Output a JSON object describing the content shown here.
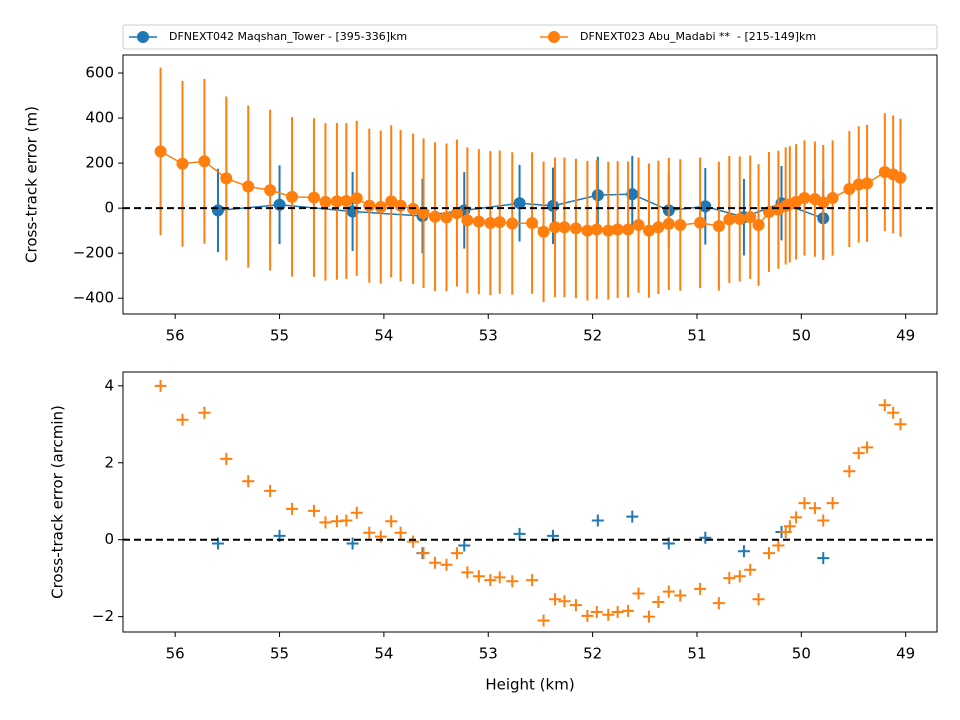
{
  "chart_data": [
    {
      "type": "errorbar",
      "ylabel": "Cross-track error (m)",
      "xlim": [
        56.5,
        48.7
      ],
      "xticks": [
        56,
        55,
        54,
        53,
        52,
        51,
        50,
        49
      ],
      "ylim": [
        -470,
        680
      ],
      "yticks": [
        {
          "value": -400,
          "label": "−400"
        },
        {
          "value": -200,
          "label": "−200"
        },
        0,
        200,
        400,
        600
      ],
      "hline": 0,
      "legend": "top",
      "series": [
        {
          "name": "DFNEXT042 Maqshan_Tower - [395-336]km",
          "color": "#1f77b4",
          "x": [
            55.59,
            55.0,
            54.3,
            53.63,
            53.23,
            52.7,
            52.38,
            51.95,
            51.62,
            51.27,
            50.92,
            50.55,
            50.19,
            49.79
          ],
          "values": [
            -10,
            15,
            -15,
            -35,
            -10,
            22,
            10,
            58,
            62,
            -10,
            8,
            -40,
            22,
            -45
          ],
          "errors": [
            185,
            175,
            175,
            165,
            170,
            170,
            170,
            170,
            170,
            165,
            170,
            170,
            165,
            175
          ]
        },
        {
          "name": "DFNEXT023 Abu_Madabi **  - [215-149]km",
          "color": "#ff7f0e",
          "x": [
            56.14,
            55.93,
            55.72,
            55.51,
            55.3,
            55.09,
            54.88,
            54.67,
            54.56,
            54.45,
            54.36,
            54.26,
            54.14,
            54.03,
            53.93,
            53.84,
            53.72,
            53.62,
            53.51,
            53.4,
            53.3,
            53.2,
            53.09,
            52.98,
            52.89,
            52.77,
            52.58,
            52.47,
            52.36,
            52.27,
            52.16,
            52.05,
            51.96,
            51.85,
            51.76,
            51.66,
            51.56,
            51.46,
            51.37,
            51.27,
            51.16,
            50.97,
            50.79,
            50.69,
            50.59,
            50.49,
            50.41,
            50.31,
            50.22,
            50.15,
            50.11,
            50.05,
            49.97,
            49.87,
            49.79,
            49.7,
            49.54,
            49.45,
            49.37,
            49.2,
            49.12,
            49.05
          ],
          "values": [
            252,
            197,
            208,
            132,
            96,
            80,
            50,
            47,
            28,
            30,
            32,
            44,
            11,
            5,
            30,
            11,
            -3,
            -22,
            -38,
            -41,
            -22,
            -54,
            -60,
            -66,
            -62,
            -68,
            -66,
            -105,
            -85,
            -85,
            -90,
            -100,
            -95,
            -100,
            -95,
            -95,
            -75,
            -100,
            -85,
            -70,
            -75,
            -65,
            -80,
            -50,
            -48,
            -40,
            -75,
            -17,
            -7,
            10,
            17,
            28,
            45,
            40,
            25,
            45,
            85,
            105,
            110,
            160,
            150,
            135
          ],
          "errors": [
            372,
            368,
            366,
            364,
            360,
            357,
            354,
            352,
            350,
            348,
            346,
            344,
            342,
            340,
            338,
            336,
            334,
            332,
            330,
            328,
            326,
            324,
            322,
            320,
            318,
            316,
            314,
            312,
            310,
            310,
            310,
            310,
            308,
            306,
            304,
            302,
            300,
            298,
            296,
            294,
            292,
            290,
            286,
            282,
            278,
            274,
            270,
            266,
            262,
            260,
            258,
            256,
            256,
            256,
            256,
            256,
            258,
            258,
            260,
            262,
            262,
            262
          ]
        }
      ]
    },
    {
      "type": "scatter",
      "ylabel": "Cross-track error (arcmin)",
      "xlabel": "Height (km)",
      "xlim": [
        56.5,
        48.7
      ],
      "xticks": [
        56,
        55,
        54,
        53,
        52,
        51,
        50,
        49
      ],
      "ylim": [
        -2.4,
        4.36
      ],
      "yticks": [
        {
          "value": -2,
          "label": "−2"
        },
        0,
        2,
        4
      ],
      "hline": 0,
      "series": [
        {
          "color": "#1f77b4",
          "x": [
            55.59,
            55.0,
            54.3,
            53.63,
            53.23,
            52.7,
            52.38,
            51.95,
            51.62,
            51.27,
            50.92,
            50.55,
            50.19,
            49.79
          ],
          "values": [
            -0.1,
            0.1,
            -0.1,
            -0.35,
            -0.15,
            0.15,
            0.1,
            0.5,
            0.6,
            -0.1,
            0.05,
            -0.3,
            0.2,
            -0.48
          ]
        },
        {
          "color": "#ff7f0e",
          "x": [
            56.14,
            55.93,
            55.72,
            55.51,
            55.3,
            55.09,
            54.88,
            54.67,
            54.56,
            54.45,
            54.36,
            54.26,
            54.14,
            54.03,
            53.93,
            53.84,
            53.72,
            53.62,
            53.51,
            53.4,
            53.3,
            53.2,
            53.09,
            52.98,
            52.89,
            52.77,
            52.58,
            52.47,
            52.36,
            52.27,
            52.16,
            52.05,
            51.96,
            51.85,
            51.76,
            51.66,
            51.56,
            51.46,
            51.37,
            51.27,
            51.16,
            50.97,
            50.79,
            50.69,
            50.59,
            50.49,
            50.41,
            50.31,
            50.22,
            50.15,
            50.11,
            50.05,
            49.97,
            49.87,
            49.79,
            49.7,
            49.54,
            49.45,
            49.37,
            49.2,
            49.12,
            49.05
          ],
          "values": [
            4.0,
            3.12,
            3.3,
            2.1,
            1.52,
            1.27,
            0.8,
            0.75,
            0.45,
            0.48,
            0.5,
            0.7,
            0.18,
            0.08,
            0.48,
            0.18,
            -0.05,
            -0.35,
            -0.6,
            -0.65,
            -0.35,
            -0.85,
            -0.95,
            -1.05,
            -0.98,
            -1.08,
            -1.05,
            -2.1,
            -1.55,
            -1.6,
            -1.7,
            -1.98,
            -1.88,
            -1.95,
            -1.88,
            -1.85,
            -1.4,
            -2.0,
            -1.62,
            -1.35,
            -1.45,
            -1.28,
            -1.65,
            -1.0,
            -0.95,
            -0.78,
            -1.55,
            -0.35,
            -0.15,
            0.2,
            0.35,
            0.58,
            0.95,
            0.82,
            0.5,
            0.95,
            1.78,
            2.25,
            2.4,
            3.5,
            3.3,
            3.0
          ]
        }
      ]
    }
  ]
}
